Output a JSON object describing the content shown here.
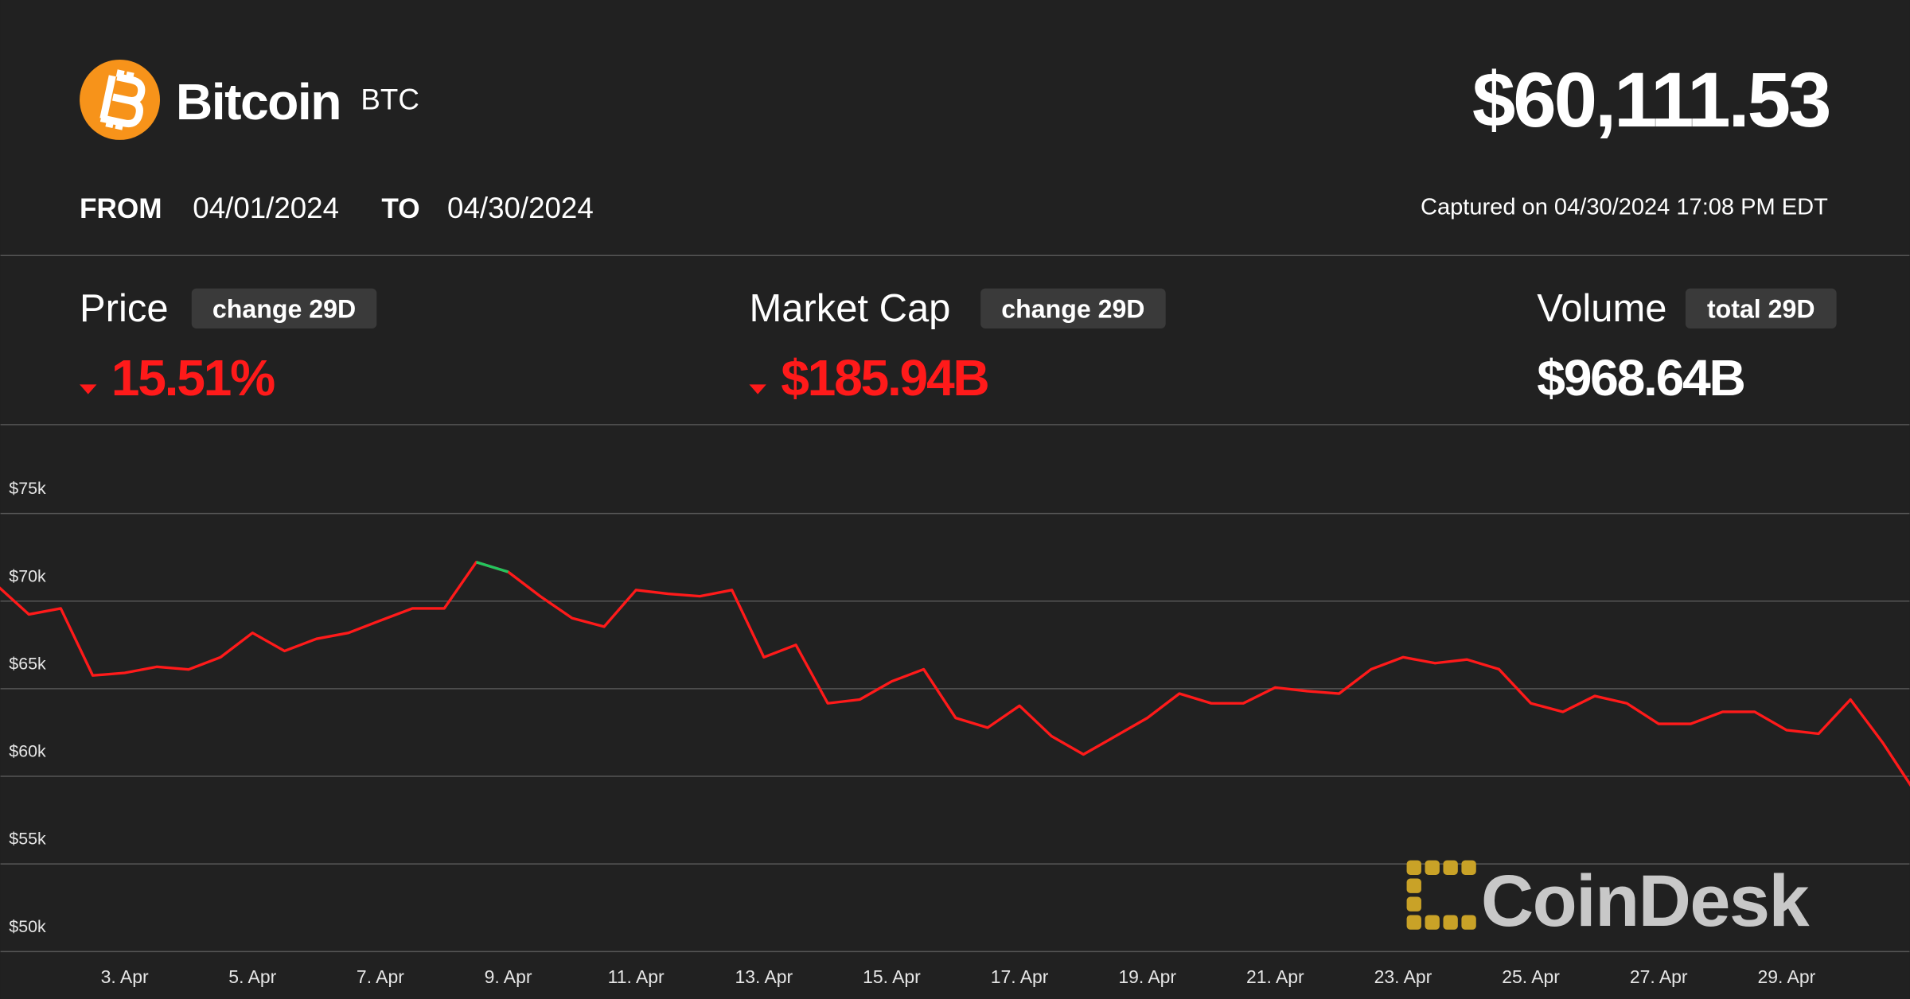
{
  "header": {
    "name": "Bitcoin",
    "symbol": "BTC",
    "price": "$60,111.53",
    "from_label": "FROM",
    "from": "04/01/2024",
    "to_label": "TO",
    "to": "04/30/2024",
    "captured": "Captured on 04/30/2024 17:08 PM EDT"
  },
  "stats": [
    {
      "label": "Price",
      "badge": "change 29D",
      "value": "15.51%"
    },
    {
      "label": "Market Cap",
      "badge": "change 29D",
      "value": "$185.94B"
    },
    {
      "label": "Volume",
      "badge": "total 29D",
      "value": "$968.64B"
    }
  ],
  "brand": "CoinDesk",
  "chart_data": {
    "type": "line",
    "categories": [
      null,
      null,
      null,
      null,
      "3. Apr",
      null,
      null,
      null,
      "5. Apr",
      null,
      null,
      null,
      "7. Apr",
      null,
      null,
      null,
      "9. Apr",
      null,
      null,
      null,
      "11. Apr",
      null,
      null,
      null,
      "13. Apr",
      null,
      null,
      null,
      "15. Apr",
      null,
      null,
      null,
      "17. Apr",
      null,
      null,
      null,
      "19. Apr",
      null,
      null,
      null,
      "21. Apr",
      null,
      null,
      null,
      "23. Apr",
      null,
      null,
      null,
      "25. Apr",
      null,
      null,
      null,
      "27. Apr",
      null,
      null,
      null,
      "29. Apr",
      null,
      null,
      null,
      null
    ],
    "series": [
      {
        "color": "#ff1a1a",
        "values": [
          70900,
          69240,
          69580,
          65760,
          65900,
          66250,
          66100,
          66800,
          68190,
          67150,
          67850,
          68190,
          68890,
          69580,
          69580,
          72220,
          71670,
          70280,
          69030,
          68540,
          70630,
          70420,
          70280,
          70630,
          66800,
          67500,
          64170,
          64380,
          65420,
          66110,
          63330,
          62780,
          64030,
          62290,
          61250,
          62290,
          63330,
          64720,
          64170,
          64170,
          65070,
          64860,
          64720,
          66110,
          66800,
          66460,
          66670,
          66110,
          64170,
          63680,
          64580,
          64170,
          62990,
          62990,
          63680,
          63680,
          62640,
          62430,
          64380,
          61940,
          59170
        ]
      },
      {
        "color": "#22c55e",
        "values": [
          null,
          null,
          null,
          null,
          null,
          null,
          null,
          null,
          null,
          null,
          null,
          null,
          null,
          null,
          null,
          72220,
          71670,
          null,
          null,
          null,
          null,
          null,
          null,
          null,
          null,
          null,
          null,
          null,
          null,
          null,
          null,
          null,
          null,
          null,
          null,
          null,
          null,
          null,
          null,
          null,
          null,
          null,
          null,
          null,
          null,
          null,
          null,
          null,
          null,
          null,
          null,
          null,
          null,
          null,
          null,
          null,
          null,
          null,
          null,
          null,
          null
        ]
      }
    ],
    "ylim": [
      50000,
      75000
    ],
    "yticks": [
      {
        "value": 50000,
        "label": "$50k"
      },
      {
        "value": 55000,
        "label": "$55k"
      },
      {
        "value": 60000,
        "label": "$60k"
      },
      {
        "value": 65000,
        "label": "$65k"
      },
      {
        "value": 70000,
        "label": "$70k"
      },
      {
        "value": 75000,
        "label": "$75k"
      }
    ],
    "grid": true
  }
}
